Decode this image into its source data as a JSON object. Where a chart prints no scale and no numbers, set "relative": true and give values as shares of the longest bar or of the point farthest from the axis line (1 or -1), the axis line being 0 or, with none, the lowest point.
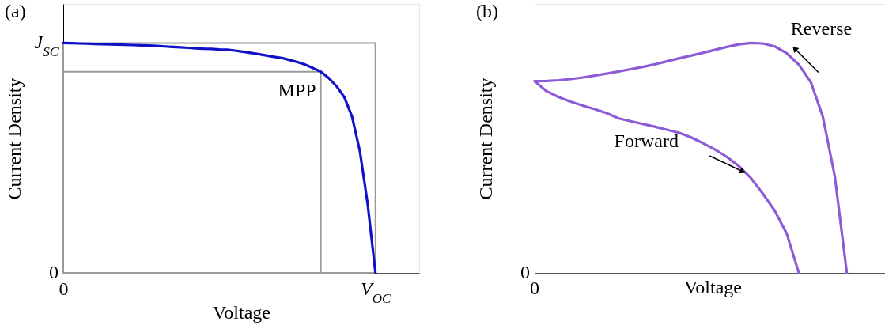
{
  "chart_data": [
    {
      "type": "line",
      "title": "(a)",
      "xlabel": "Voltage",
      "ylabel": "Current Density",
      "relative": true,
      "categories": [
        "0",
        null,
        null,
        null,
        null,
        null,
        null,
        null,
        null,
        null,
        null,
        null,
        null,
        null,
        null,
        null,
        null,
        null,
        null,
        null,
        null,
        null,
        null,
        null,
        null,
        null,
        null,
        null,
        null,
        null,
        null,
        null,
        null,
        null,
        null,
        null,
        null,
        null,
        null,
        null,
        "V$_{OC}$"
      ],
      "series": [
        {
          "color": "#1010c8",
          "values": [
            1,
            0.999,
            0.998,
            0.997,
            0.996,
            0.995,
            0.994,
            0.993,
            0.992,
            0.991,
            0.99,
            0.989,
            0.987,
            0.985,
            0.983,
            0.981,
            0.979,
            0.977,
            0.975,
            0.974,
            0.972,
            0.971,
            0.967,
            0.962,
            0.957,
            0.952,
            0.946,
            0.94,
            0.935,
            0.926,
            0.917,
            0.906,
            0.891,
            0.875,
            0.848,
            0.813,
            0.765,
            0.68,
            0.53,
            0.3,
            0
          ]
        }
      ],
      "annotations": [
        "0",
        "J$_{SC}$",
        "MPP"
      ]
    },
    {
      "type": "line",
      "title": "(b)",
      "xlabel": "Voltage",
      "ylabel": "Current Density",
      "relative": true,
      "categories": [
        null,
        null,
        null,
        null,
        null,
        null,
        null,
        null,
        null,
        null,
        null,
        null,
        null,
        null,
        null,
        null,
        null,
        null,
        null,
        null,
        null,
        null,
        null,
        null,
        null,
        null,
        null
      ],
      "series": [
        {
          "name": "Reverse",
          "color": "#8e5bd6",
          "values": [
            0.834,
            0.835,
            0.838,
            0.843,
            0.85,
            0.858,
            0.867,
            0.876,
            0.886,
            0.896,
            0.907,
            0.92,
            0.933,
            0.945,
            0.957,
            0.97,
            0.983,
            0.994,
            1,
            0.998,
            0.985,
            0.955,
            0.906,
            0.83,
            0.68,
            0.42,
            0
          ]
        },
        {
          "name": "Forward",
          "color": "#8e5bd6",
          "values": [
            0.834,
            0.79,
            0.765,
            0.745,
            0.728,
            0.712,
            0.695,
            0.672,
            0.66,
            0.648,
            0.636,
            0.623,
            0.61,
            0.59,
            0.565,
            0.537,
            0.505,
            0.465,
            0.413,
            0.345,
            0.27,
            0.17,
            0,
            null,
            null,
            null,
            null
          ]
        }
      ],
      "annotations": [
        "0",
        "0"
      ]
    }
  ]
}
